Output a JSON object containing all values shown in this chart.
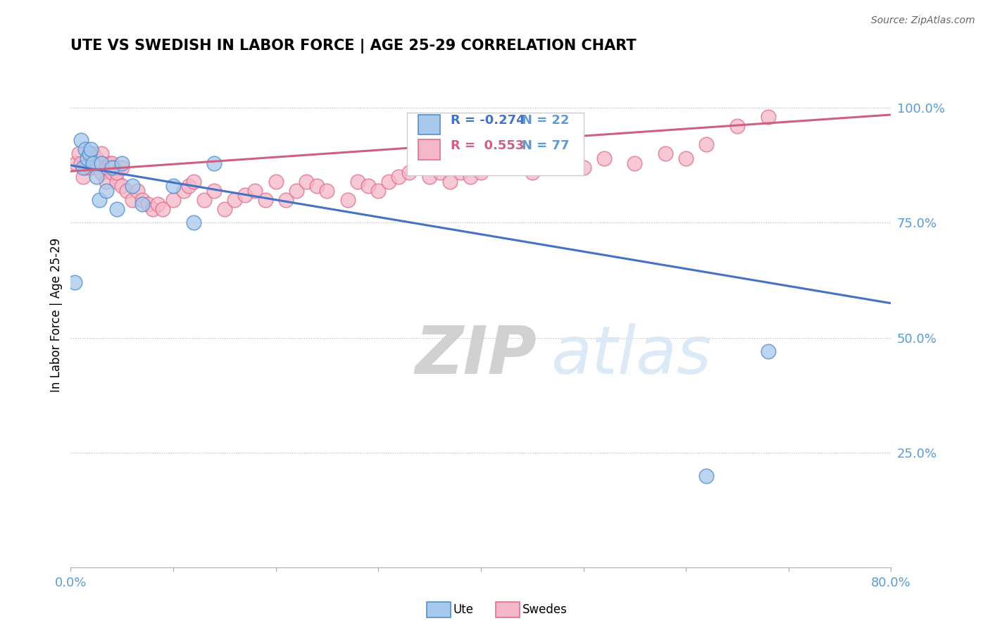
{
  "title": "UTE VS SWEDISH IN LABOR FORCE | AGE 25-29 CORRELATION CHART",
  "source_text": "Source: ZipAtlas.com",
  "ylabel": "In Labor Force | Age 25-29",
  "xlim": [
    0.0,
    0.8
  ],
  "ylim": [
    0.0,
    1.1
  ],
  "ytick_positions": [
    0.25,
    0.5,
    0.75,
    1.0
  ],
  "ytick_labels": [
    "25.0%",
    "50.0%",
    "75.0%",
    "100.0%"
  ],
  "legend_r_ute": "R = -0.274",
  "legend_n_ute": "N = 22",
  "legend_r_swedes": "R =  0.553",
  "legend_n_swedes": "N = 77",
  "color_ute_fill": "#A8C8EC",
  "color_ute_edge": "#5090D0",
  "color_ute_line": "#4472C4",
  "color_swedes_fill": "#F5B8C8",
  "color_swedes_edge": "#E07090",
  "color_swedes_line": "#D06080",
  "color_axis_labels": "#5B9BD5",
  "watermark_color": "#D8E8F5",
  "background_color": "#FFFFFF",
  "ute_x": [
    0.004,
    0.01,
    0.012,
    0.014,
    0.016,
    0.018,
    0.02,
    0.022,
    0.025,
    0.028,
    0.03,
    0.035,
    0.04,
    0.045,
    0.05,
    0.06,
    0.07,
    0.1,
    0.12,
    0.14,
    0.62,
    0.68
  ],
  "ute_y": [
    0.62,
    0.93,
    0.87,
    0.91,
    0.89,
    0.9,
    0.91,
    0.88,
    0.85,
    0.8,
    0.88,
    0.82,
    0.87,
    0.78,
    0.88,
    0.83,
    0.79,
    0.83,
    0.75,
    0.88,
    0.2,
    0.47
  ],
  "swedes_x": [
    0.005,
    0.008,
    0.01,
    0.012,
    0.015,
    0.018,
    0.02,
    0.022,
    0.025,
    0.025,
    0.028,
    0.03,
    0.03,
    0.03,
    0.035,
    0.035,
    0.038,
    0.04,
    0.04,
    0.042,
    0.045,
    0.045,
    0.05,
    0.05,
    0.055,
    0.06,
    0.065,
    0.07,
    0.075,
    0.08,
    0.085,
    0.09,
    0.1,
    0.11,
    0.115,
    0.12,
    0.13,
    0.14,
    0.15,
    0.16,
    0.17,
    0.18,
    0.19,
    0.2,
    0.21,
    0.22,
    0.23,
    0.24,
    0.25,
    0.27,
    0.28,
    0.29,
    0.3,
    0.31,
    0.32,
    0.33,
    0.34,
    0.35,
    0.36,
    0.37,
    0.38,
    0.39,
    0.4,
    0.42,
    0.44,
    0.45,
    0.46,
    0.47,
    0.48,
    0.5,
    0.52,
    0.55,
    0.58,
    0.6,
    0.62,
    0.65,
    0.68
  ],
  "swedes_y": [
    0.88,
    0.9,
    0.88,
    0.85,
    0.87,
    0.88,
    0.87,
    0.9,
    0.89,
    0.87,
    0.88,
    0.88,
    0.86,
    0.9,
    0.87,
    0.84,
    0.88,
    0.86,
    0.88,
    0.87,
    0.84,
    0.86,
    0.87,
    0.83,
    0.82,
    0.8,
    0.82,
    0.8,
    0.79,
    0.78,
    0.79,
    0.78,
    0.8,
    0.82,
    0.83,
    0.84,
    0.8,
    0.82,
    0.78,
    0.8,
    0.81,
    0.82,
    0.8,
    0.84,
    0.8,
    0.82,
    0.84,
    0.83,
    0.82,
    0.8,
    0.84,
    0.83,
    0.82,
    0.84,
    0.85,
    0.86,
    0.87,
    0.85,
    0.86,
    0.84,
    0.86,
    0.85,
    0.86,
    0.88,
    0.87,
    0.86,
    0.88,
    0.87,
    0.88,
    0.87,
    0.89,
    0.88,
    0.9,
    0.89,
    0.92,
    0.96,
    0.98
  ],
  "ute_trendline_x": [
    0.0,
    0.8
  ],
  "ute_trendline_y": [
    0.875,
    0.575
  ],
  "swedes_trendline_x": [
    0.0,
    0.8
  ],
  "swedes_trendline_y": [
    0.862,
    0.985
  ]
}
